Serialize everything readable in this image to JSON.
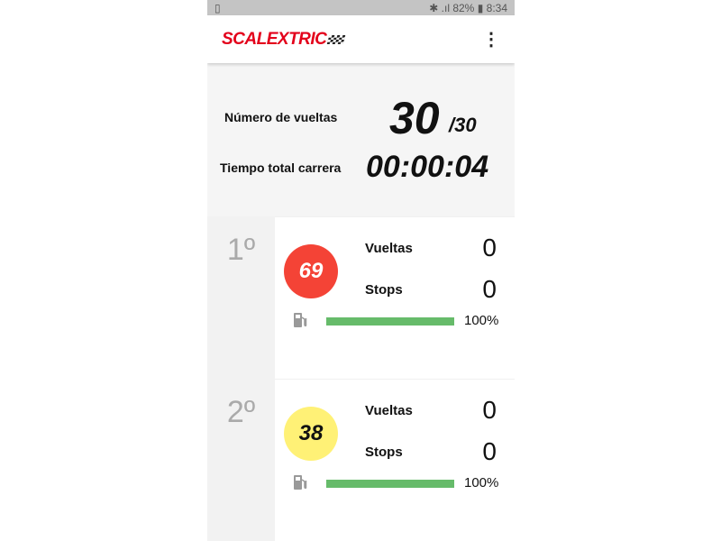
{
  "status_bar": {
    "battery": "82%",
    "time": "8:34"
  },
  "header": {
    "brand": "SCALEXTRIC",
    "menu_icon": "more-vert-icon"
  },
  "summary": {
    "laps_label": "Número de vueltas",
    "laps_done": "30",
    "laps_total": "/30",
    "time_label": "Tiempo total carrera",
    "time_value": "00:00:04"
  },
  "racers": [
    {
      "position": "1º",
      "number": "69",
      "color": "#f44336",
      "text_color": "#ffffff",
      "laps_label": "Vueltas",
      "laps": "0",
      "stops_label": "Stops",
      "stops": "0",
      "fuel_percent": 100,
      "fuel_label": "100%"
    },
    {
      "position": "2º",
      "number": "38",
      "color": "#fff176",
      "text_color": "#111111",
      "laps_label": "Vueltas",
      "laps": "0",
      "stops_label": "Stops",
      "stops": "0",
      "fuel_percent": 100,
      "fuel_label": "100%"
    }
  ]
}
